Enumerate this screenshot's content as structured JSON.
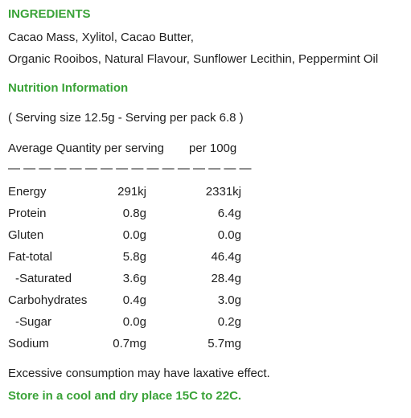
{
  "ingredients": {
    "heading": "INGREDIENTS",
    "line1": "Cacao Mass, Xylitol, Cacao Butter,",
    "line2": "Organic Rooibos, Natural Flavour, Sunflower Lecithin, Peppermint Oil"
  },
  "nutrition": {
    "heading": "Nutrition Information",
    "serving_info": "( Serving size 12.5g - Serving per pack 6.8 )",
    "avg_label": "Average Quantity per serving",
    "per100_label": "per 100g",
    "divider": "— — — — — — — — — — — — — — — —",
    "rows": [
      {
        "name": "Energy",
        "per_serving": "291kj",
        "per_100g": "2331kj"
      },
      {
        "name": "Protein",
        "per_serving": "0.8g",
        "per_100g": "6.4g"
      },
      {
        "name": "Gluten",
        "per_serving": "0.0g",
        "per_100g": "0.0g"
      },
      {
        "name": "Fat-total",
        "per_serving": "5.8g",
        "per_100g": "46.4g"
      },
      {
        "name": "-Saturated",
        "per_serving": "3.6g",
        "per_100g": "28.4g"
      },
      {
        "name": "Carbohydrates",
        "per_serving": "0.4g",
        "per_100g": "3.0g"
      },
      {
        "name": "-Sugar",
        "per_serving": "0.0g",
        "per_100g": "0.2g"
      },
      {
        "name": "Sodium",
        "per_serving": "0.7mg",
        "per_100g": "5.7mg"
      }
    ]
  },
  "footer": {
    "warning": "Excessive consumption may have laxative effect.",
    "storage": "Store in a cool and dry place 15C to 22C."
  },
  "colors": {
    "heading_green": "#3aa338",
    "text": "#1e1e1e"
  }
}
